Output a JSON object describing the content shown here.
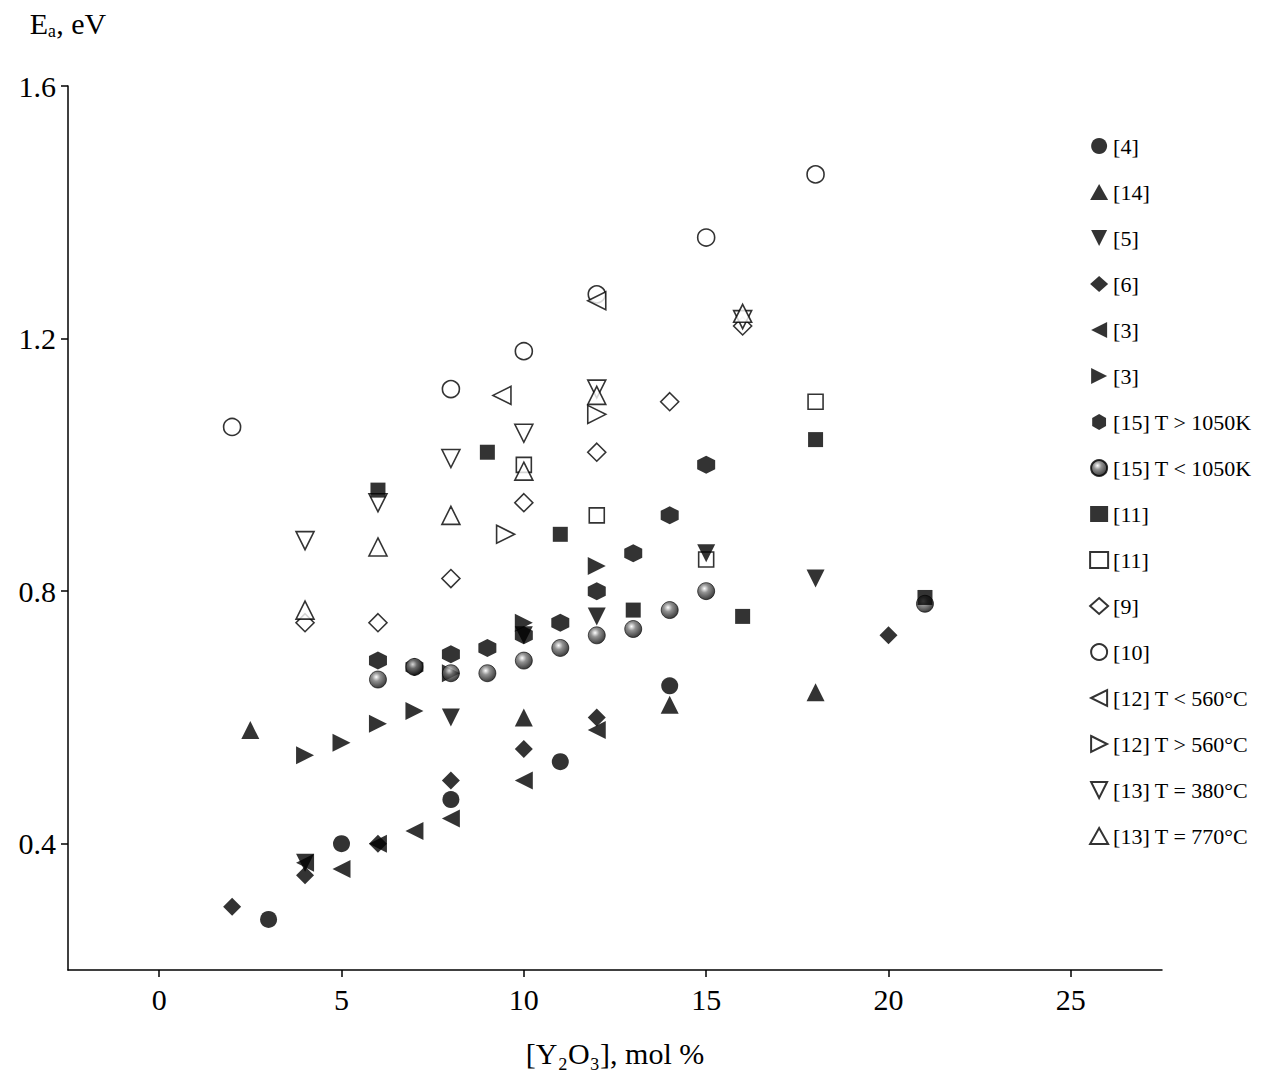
{
  "chart_data": {
    "type": "scatter",
    "x_label": "[Y₂O₃], mol %",
    "y_label": "Eₐ, eV",
    "xlim": [
      -2.5,
      27.5
    ],
    "xticks": [
      0,
      5,
      10,
      15,
      20,
      25
    ],
    "ylim": [
      0.2,
      1.6
    ],
    "yticks": [
      0.4,
      0.8,
      1.2,
      1.6
    ],
    "grid": false,
    "legend": "right",
    "series": [
      {
        "name": "[4]",
        "marker": "circle",
        "color": "#000000",
        "x": [
          3,
          5,
          8,
          11,
          14
        ],
        "values": [
          0.28,
          0.4,
          0.47,
          0.53,
          0.65
        ]
      },
      {
        "name": "[14]",
        "marker": "triangle",
        "color": "#000000",
        "x": [
          2.5,
          10,
          14,
          18
        ],
        "values": [
          0.58,
          0.6,
          0.62,
          0.64
        ]
      },
      {
        "name": "[5]",
        "marker": "triangle-down",
        "color": "#000000",
        "x": [
          4,
          8,
          10,
          12,
          15,
          18
        ],
        "values": [
          0.37,
          0.6,
          0.73,
          0.76,
          0.86,
          0.82
        ]
      },
      {
        "name": "[6]",
        "marker": "diamond",
        "color": "#000000",
        "x": [
          2,
          4,
          6,
          8,
          10,
          12,
          20
        ],
        "values": [
          0.3,
          0.35,
          0.4,
          0.5,
          0.55,
          0.6,
          0.73
        ]
      },
      {
        "name": "[3]",
        "marker": "triangle-left",
        "color": "#000000",
        "x": [
          4,
          5,
          6,
          7,
          8,
          10,
          12
        ],
        "values": [
          0.37,
          0.36,
          0.4,
          0.42,
          0.44,
          0.5,
          0.58
        ]
      },
      {
        "name": "[3]",
        "marker": "triangle-right",
        "color": "#000000",
        "x": [
          4,
          5,
          6,
          7,
          8,
          10,
          12
        ],
        "values": [
          0.54,
          0.56,
          0.59,
          0.61,
          0.67,
          0.75,
          0.84
        ]
      },
      {
        "name": "[15] T > 1050K",
        "marker": "hexagon",
        "color": "#000000",
        "x": [
          6,
          7,
          8,
          9,
          10,
          11,
          12,
          13,
          14,
          15
        ],
        "values": [
          0.69,
          0.68,
          0.7,
          0.71,
          0.73,
          0.75,
          0.8,
          0.86,
          0.92,
          1.0
        ]
      },
      {
        "name": "[15] T < 1050K",
        "marker": "sphere",
        "color": "#000000",
        "x": [
          6,
          7,
          8,
          9,
          10,
          11,
          12,
          13,
          14,
          15,
          21
        ],
        "values": [
          0.66,
          0.68,
          0.67,
          0.67,
          0.69,
          0.71,
          0.73,
          0.74,
          0.77,
          0.8,
          0.78
        ]
      },
      {
        "name": "[11]",
        "marker": "square",
        "color": "#000000",
        "x": [
          6,
          9,
          11,
          13,
          16,
          18,
          21
        ],
        "values": [
          0.96,
          1.02,
          0.89,
          0.77,
          0.76,
          1.04,
          0.79
        ]
      },
      {
        "name": "[11]",
        "marker": "square-open",
        "color": "#000000",
        "x": [
          10,
          12,
          15,
          18
        ],
        "values": [
          1.0,
          0.92,
          0.85,
          1.1
        ]
      },
      {
        "name": "[9]",
        "marker": "diamond-open",
        "color": "#000000",
        "x": [
          4,
          6,
          8,
          10,
          12,
          14,
          16
        ],
        "values": [
          0.75,
          0.75,
          0.82,
          0.94,
          1.02,
          1.1,
          1.22
        ]
      },
      {
        "name": "[10]",
        "marker": "circle-open",
        "color": "#000000",
        "x": [
          2,
          8,
          10,
          12,
          15,
          18
        ],
        "values": [
          1.06,
          1.12,
          1.18,
          1.27,
          1.36,
          1.46
        ]
      },
      {
        "name": "[12] T < 560°C",
        "marker": "triangle-left-open",
        "color": "#000000",
        "x": [
          9.4,
          12
        ],
        "values": [
          1.11,
          1.26
        ]
      },
      {
        "name": "[12] T > 560°C",
        "marker": "triangle-right-open",
        "color": "#000000",
        "x": [
          9.5,
          12
        ],
        "values": [
          0.89,
          1.08
        ]
      },
      {
        "name": "[13] T = 380°C",
        "marker": "triangle-down-open",
        "color": "#000000",
        "x": [
          4,
          6,
          8,
          10,
          12,
          16
        ],
        "values": [
          0.88,
          0.94,
          1.01,
          1.05,
          1.12,
          1.23
        ]
      },
      {
        "name": "[13] T = 770°C",
        "marker": "triangle-open",
        "color": "#000000",
        "x": [
          4,
          6,
          8,
          10,
          12,
          16
        ],
        "values": [
          0.77,
          0.87,
          0.92,
          0.99,
          1.11,
          1.24
        ]
      }
    ]
  }
}
